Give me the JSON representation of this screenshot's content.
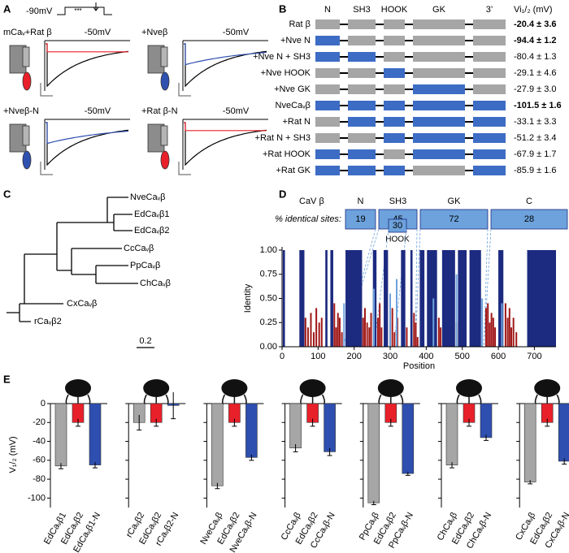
{
  "panel_labels": [
    "A",
    "B",
    "C",
    "D",
    "E"
  ],
  "panel_a": {
    "protocol_label": "-90mV",
    "protocol_marker": "***",
    "recordings": [
      {
        "label": "mCaᵥ+Rat β",
        "voltage": "-50mV",
        "color": "#e8202a"
      },
      {
        "label": "+Nveβ",
        "voltage": "-50mV",
        "color": "#3050b0"
      },
      {
        "label": "+Nveβ-N",
        "voltage": "-50mV",
        "color": "#3050b0"
      },
      {
        "label": "+Rat β-N",
        "voltage": "-50mV",
        "color": "#e8202a"
      }
    ]
  },
  "panel_b": {
    "columns": [
      "N",
      "SH3",
      "HOOK",
      "GK",
      "3’"
    ],
    "value_header": "Vi₁/₂ (mV)",
    "rows": [
      {
        "label": "Rat β",
        "domains": [
          "#a6a6a6",
          "#a6a6a6",
          "#a6a6a6",
          "#a6a6a6",
          "#a6a6a6"
        ],
        "value": "-20.4 ± 3.6",
        "bold": true
      },
      {
        "label": "+Nve N",
        "domains": [
          "#3d6cc4",
          "#a6a6a6",
          "#a6a6a6",
          "#a6a6a6",
          "#a6a6a6"
        ],
        "value": "-94.4 ± 1.2",
        "bold": true
      },
      {
        "label": "+Nve N + SH3",
        "domains": [
          "#3d6cc4",
          "#3d6cc4",
          "#a6a6a6",
          "#a6a6a6",
          "#a6a6a6"
        ],
        "value": "-80.4 ± 1.3",
        "bold": false
      },
      {
        "label": "+Nve HOOK",
        "domains": [
          "#a6a6a6",
          "#a6a6a6",
          "#3d6cc4",
          "#a6a6a6",
          "#a6a6a6"
        ],
        "value": "-29.1 ± 4.6",
        "bold": false
      },
      {
        "label": "+Nve GK",
        "domains": [
          "#a6a6a6",
          "#a6a6a6",
          "#a6a6a6",
          "#3d6cc4",
          "#a6a6a6"
        ],
        "value": "-27.9 ± 3.0",
        "bold": false
      },
      {
        "label": "NveCaᵥβ",
        "domains": [
          "#3d6cc4",
          "#3d6cc4",
          "#3d6cc4",
          "#3d6cc4",
          "#3d6cc4"
        ],
        "value": "-101.5 ± 1.6",
        "bold": true
      },
      {
        "label": "+Rat N",
        "domains": [
          "#a6a6a6",
          "#3d6cc4",
          "#3d6cc4",
          "#3d6cc4",
          "#3d6cc4"
        ],
        "value": "-33.1 ± 3.3",
        "bold": false
      },
      {
        "label": "+Rat N + SH3",
        "domains": [
          "#a6a6a6",
          "#a6a6a6",
          "#3d6cc4",
          "#3d6cc4",
          "#3d6cc4"
        ],
        "value": "-51.2 ± 3.4",
        "bold": false
      },
      {
        "label": "+Rat HOOK",
        "domains": [
          "#3d6cc4",
          "#3d6cc4",
          "#a6a6a6",
          "#3d6cc4",
          "#3d6cc4"
        ],
        "value": "-67.9 ± 1.7",
        "bold": false
      },
      {
        "label": "+Rat GK",
        "domains": [
          "#3d6cc4",
          "#3d6cc4",
          "#3d6cc4",
          "#a6a6a6",
          "#3d6cc4"
        ],
        "value": "-85.9 ± 1.6",
        "bold": false
      }
    ]
  },
  "panel_c": {
    "leaves": [
      "NveCaᵥβ",
      "EdCaᵥβ1",
      "EdCaᵥβ2",
      "CcCaᵥβ",
      "PpCaᵥβ",
      "ChCaᵥβ",
      "CxCaᵥβ",
      "rCaᵥβ2"
    ],
    "scale_label": "0.2"
  },
  "panel_d": {
    "title": "CaV β",
    "identity_label": "% identical sites:",
    "domains": [
      {
        "label": "N",
        "value": "19"
      },
      {
        "label": "SH3",
        "value": "45"
      },
      {
        "label": "GK",
        "value": "72"
      },
      {
        "label": "C",
        "value": "28"
      }
    ],
    "hook": {
      "label": "HOOK",
      "value": "30"
    },
    "chart": {
      "type": "bar",
      "xlabel": "Position",
      "ylabel": "Identity",
      "xlim": [
        0,
        760
      ],
      "xticks": [
        0,
        100,
        200,
        300,
        400,
        500,
        600,
        700
      ],
      "ylim": [
        0,
        1
      ],
      "yticks": [
        {
          "value": 0,
          "label": "0.00"
        },
        {
          "value": 0.25,
          "label": "0.25"
        },
        {
          "value": 0.5,
          "label": "0.50"
        },
        {
          "value": 0.75,
          "label": "0.75"
        },
        {
          "value": 1,
          "label": "1.00"
        }
      ],
      "bands": {
        "color": "#1c2a80",
        "value": 1,
        "ranges": [
          [
            2,
            8
          ],
          [
            48,
            62
          ],
          [
            120,
            126
          ],
          [
            134,
            142
          ],
          [
            176,
            222
          ],
          [
            252,
            262
          ],
          [
            282,
            294
          ],
          [
            330,
            342
          ],
          [
            356,
            362
          ],
          [
            382,
            395
          ],
          [
            402,
            430
          ],
          [
            444,
            480
          ],
          [
            488,
            512
          ],
          [
            520,
            552
          ],
          [
            600,
            614
          ],
          [
            680,
            760
          ]
        ]
      },
      "bars": [
        {
          "color": "#a01818",
          "x": [
            65,
            72,
            80,
            88,
            95,
            103,
            110,
            145,
            150,
            155,
            160,
            166,
            225,
            230,
            236,
            242,
            247,
            266,
            271,
            276,
            300,
            306,
            312,
            320,
            346,
            366,
            371,
            376,
            435,
            440,
            484,
            566,
            571,
            576,
            581,
            586,
            591,
            620,
            626,
            631,
            636,
            642,
            650
          ],
          "values": [
            0.3,
            0.2,
            0.35,
            0.15,
            0.4,
            0.25,
            0.3,
            0.45,
            0.2,
            0.35,
            0.3,
            0.15,
            0.3,
            0.4,
            0.25,
            0.2,
            0.35,
            0.3,
            0.45,
            0.2,
            0.25,
            0.4,
            0.15,
            0.3,
            0.2,
            0.35,
            0.25,
            0.1,
            0.3,
            0.2,
            0.25,
            0.4,
            0.45,
            0.25,
            0.35,
            0.3,
            0.2,
            0.45,
            0.3,
            0.4,
            0.2,
            0.3,
            0.15
          ]
        },
        {
          "color": "#6da2dc",
          "x": [
            172,
            255,
            300,
            318,
            420,
            484,
            555,
            610
          ],
          "values": [
            0.45,
            0.6,
            0.55,
            0.7,
            0.5,
            0.75,
            0.5,
            0.45
          ]
        }
      ]
    }
  },
  "panel_e": {
    "type": "bar",
    "ylabel": "V₁/₂ (mV)",
    "ylim": [
      -110,
      0
    ],
    "yticks": [
      0,
      -20,
      -40,
      -60,
      -80,
      -100
    ],
    "colors": [
      "#a6a6a6",
      "#e8202a",
      "#2e4faf"
    ],
    "groups": [
      {
        "labels": [
          "EdCaᵥβ1",
          "EdCaᵥβ2",
          "EdCaᵥβ1-N"
        ],
        "values": [
          -66,
          -20,
          -65
        ],
        "errors": [
          3,
          4,
          3
        ]
      },
      {
        "labels": [
          "rCaᵥβ2",
          "EdCaᵥβ2",
          "rCaᵥβ2-N"
        ],
        "values": [
          -20,
          -20,
          -2
        ],
        "errors": [
          8,
          4,
          14
        ]
      },
      {
        "labels": [
          "NveCaᵥβ",
          "EdCaᵥβ2",
          "NveCaᵥβ-N"
        ],
        "values": [
          -87,
          -20,
          -57
        ],
        "errors": [
          3,
          4,
          3
        ]
      },
      {
        "labels": [
          "CcCaᵥβ",
          "EdCaᵥβ2",
          "CcCaᵥβ-N"
        ],
        "values": [
          -47,
          -20,
          -51
        ],
        "errors": [
          4,
          4,
          4
        ]
      },
      {
        "labels": [
          "PpCaᵥβ",
          "EdCaᵥβ2",
          "PpCaᵥβ-N"
        ],
        "values": [
          -105,
          -20,
          -74
        ],
        "errors": [
          2,
          4,
          2
        ]
      },
      {
        "labels": [
          "ChCaᵥβ",
          "EdCaᵥβ2",
          "ChCaᵥβ-N"
        ],
        "values": [
          -65,
          -20,
          -36
        ],
        "errors": [
          3,
          4,
          3
        ]
      },
      {
        "labels": [
          "CxCaᵥβ",
          "EdCaᵥβ2",
          "CxCaᵥβ-N"
        ],
        "values": [
          -83,
          -20,
          -61
        ],
        "errors": [
          2,
          4,
          3
        ]
      }
    ]
  }
}
